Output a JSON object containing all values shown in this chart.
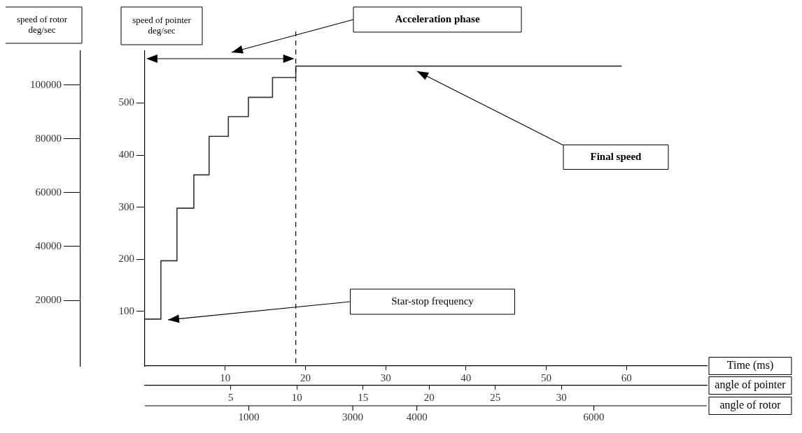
{
  "chart_data": {
    "type": "step",
    "xlabel": "Time (ms)",
    "ylabel": "speed of pointer deg/sec",
    "y2label": "speed of rotor deg/sec",
    "x2label": "angle of pointer",
    "x": [
      0,
      2,
      4,
      6.1,
      8,
      10.4,
      12.9,
      15.9,
      18.8,
      59.4
    ],
    "values": [
      85,
      197,
      298,
      362,
      436,
      474,
      511,
      549,
      571,
      571
    ],
    "color": "#333333",
    "xlim": [
      0,
      70
    ],
    "xticks": [
      10,
      20,
      30,
      40,
      50,
      60
    ],
    "ylim": [
      -5,
      600
    ],
    "yticks": [
      100,
      200,
      300,
      400,
      500
    ],
    "y2lim": [
      -4400,
      112700
    ],
    "y2ticks": [
      20000,
      40000,
      60000,
      80000,
      100000
    ],
    "x2lim": [
      -1.5,
      41
    ],
    "x2ticks": [
      5,
      10,
      15,
      20,
      25,
      30
    ],
    "ref_lines": [
      {
        "axis": "x",
        "value": 18.8,
        "line_style": "dashed",
        "color": "#000000"
      }
    ],
    "annotations": [
      "Acceleration phase",
      "Final speed",
      "Star-stop frequency",
      "1000",
      "3000",
      "4000",
      "6000",
      "angle of rotor"
    ],
    "grid": false,
    "legend": false,
    "marker": "none",
    "line_style": "solid"
  }
}
